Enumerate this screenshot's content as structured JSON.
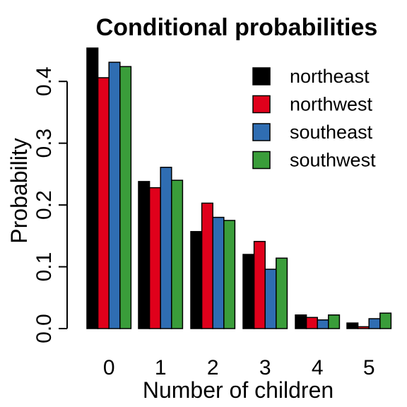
{
  "chart_data": {
    "type": "bar",
    "title": "Conditional probabilities",
    "xlabel": "Number of children",
    "ylabel": "Probability",
    "categories": [
      "0",
      "1",
      "2",
      "3",
      "4",
      "5"
    ],
    "series": [
      {
        "name": "northeast",
        "color": "#000000",
        "values": [
          0.454,
          0.238,
          0.157,
          0.12,
          0.022,
          0.009
        ]
      },
      {
        "name": "northwest",
        "color": "#e0001b",
        "values": [
          0.406,
          0.228,
          0.203,
          0.141,
          0.018,
          0.003
        ]
      },
      {
        "name": "southeast",
        "color": "#2f6db2",
        "values": [
          0.431,
          0.261,
          0.18,
          0.096,
          0.014,
          0.016
        ]
      },
      {
        "name": "southwest",
        "color": "#3a9d3a",
        "values": [
          0.424,
          0.24,
          0.175,
          0.114,
          0.022,
          0.025
        ]
      }
    ],
    "ylim": [
      0,
      0.454
    ],
    "yticks": [
      "0.0",
      "0.1",
      "0.2",
      "0.3",
      "0.4"
    ],
    "ytick_values": [
      0.0,
      0.1,
      0.2,
      0.3,
      0.4
    ],
    "grid": false,
    "legend_position": "top-right"
  }
}
